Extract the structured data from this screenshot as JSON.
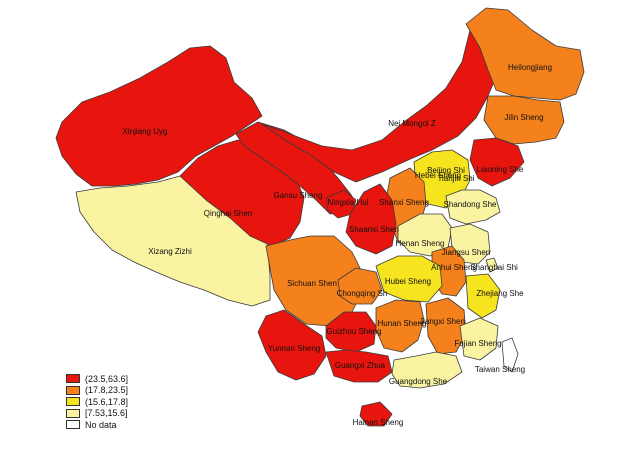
{
  "colors": {
    "c1": "#e8150e",
    "c2": "#f5811c",
    "c3": "#f6e41f",
    "c4": "#f9f3a2",
    "c5": "#ffffff",
    "sea": "#ffffff"
  },
  "legend": [
    {
      "label": "(23.5,63.6]",
      "color": "#e8150e"
    },
    {
      "label": "(17.8,23.5]",
      "color": "#f5811c"
    },
    {
      "label": "(15.6,17.8]",
      "color": "#f6e41f"
    },
    {
      "label": "[7.53,15.6]",
      "color": "#f9f3a2"
    },
    {
      "label": "No data",
      "color": "#ffffff"
    }
  ],
  "regions": [
    {
      "key": "xinjiang",
      "label": "Xinjiang Uyg",
      "color": "#e8150e"
    },
    {
      "key": "xizang",
      "label": "Xizang Zizhi",
      "color": "#f9f3a2"
    },
    {
      "key": "qinghai",
      "label": "Qinghai Shen",
      "color": "#e8150e"
    },
    {
      "key": "gansu",
      "label": "Gansu Sheng",
      "color": "#e8150e"
    },
    {
      "key": "neimenggu",
      "label": "Nei Mongol Z",
      "color": "#e8150e"
    },
    {
      "key": "heilongjiang",
      "label": "Heilongjiang",
      "color": "#f5811c"
    },
    {
      "key": "jilin",
      "label": "Jilin Sheng",
      "color": "#f5811c"
    },
    {
      "key": "liaoning",
      "label": "Liaoning She",
      "color": "#e8150e"
    },
    {
      "key": "beijing",
      "label": "Beijing Shi",
      "color": "#f9f3a2"
    },
    {
      "key": "tianjin",
      "label": "Tianjin Shi",
      "color": "#f9f3a2"
    },
    {
      "key": "hebei",
      "label": "Hebei Sheng",
      "color": "#f6e41f"
    },
    {
      "key": "shandong",
      "label": "Shandong She",
      "color": "#f9f3a2"
    },
    {
      "key": "shanxi",
      "label": "Shanxi Sheng",
      "color": "#f5811c"
    },
    {
      "key": "ningxia",
      "label": "Ningxia Hui",
      "color": "#e8150e"
    },
    {
      "key": "shaanxi",
      "label": "Shaanxi Shen",
      "color": "#e8150e"
    },
    {
      "key": "henan",
      "label": "Henan Sheng",
      "color": "#f9f3a2"
    },
    {
      "key": "jiangsu",
      "label": "Jiangsu Shen",
      "color": "#f9f3a2"
    },
    {
      "key": "anhui",
      "label": "Anhui Sheng",
      "color": "#f5811c"
    },
    {
      "key": "shanghai",
      "label": "Shanghai Shi",
      "color": "#f9f3a2"
    },
    {
      "key": "sichuan",
      "label": "Sichuan Shen",
      "color": "#f5811c"
    },
    {
      "key": "chongqing",
      "label": "Chongqing Sh",
      "color": "#f5811c"
    },
    {
      "key": "hubei",
      "label": "Hubei Sheng",
      "color": "#f6e41f"
    },
    {
      "key": "zhejiang",
      "label": "Zhejiang She",
      "color": "#f6e41f"
    },
    {
      "key": "hunan",
      "label": "Hunan Sheng",
      "color": "#f5811c"
    },
    {
      "key": "jiangxi",
      "label": "Jiangxi Shen",
      "color": "#f5811c"
    },
    {
      "key": "guizhou",
      "label": "Guizhou Sheng",
      "color": "#e8150e"
    },
    {
      "key": "yunnan",
      "label": "Yunnan Sheng",
      "color": "#e8150e"
    },
    {
      "key": "guangxi",
      "label": "Guangxi Zhua",
      "color": "#e8150e"
    },
    {
      "key": "fujian",
      "label": "Fujian Sheng",
      "color": "#f9f3a2"
    },
    {
      "key": "taiwan",
      "label": "Taiwan Sheng",
      "color": "#ffffff"
    },
    {
      "key": "guangdong",
      "label": "Guangdong She",
      "color": "#f9f3a2"
    },
    {
      "key": "hainan",
      "label": "Hainan Sheng",
      "color": "#e8150e"
    }
  ]
}
